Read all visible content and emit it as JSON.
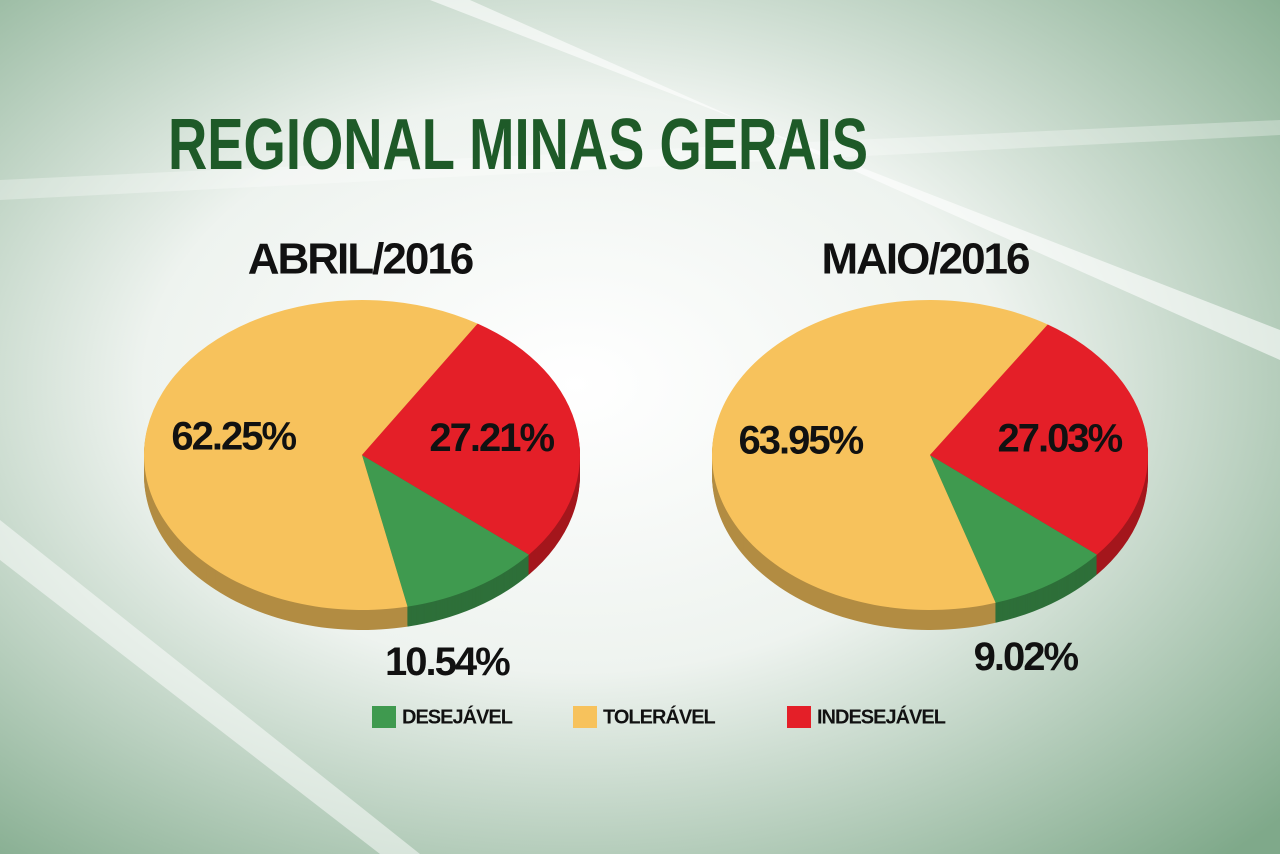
{
  "title": "REGIONAL MINAS GERAIS",
  "chart_data": [
    {
      "type": "pie",
      "title": "ABRIL/2016",
      "categories": [
        "DESEJÁVEL",
        "TOLERÁVEL",
        "INDESEJÁVEL"
      ],
      "values": [
        10.54,
        62.25,
        27.21
      ],
      "value_labels": [
        "10.54%",
        "62.25%",
        "27.21%"
      ],
      "colors": [
        "#3f9a4f",
        "#f7c25c",
        "#e41f28"
      ]
    },
    {
      "type": "pie",
      "title": "MAIO/2016",
      "categories": [
        "DESEJÁVEL",
        "TOLERÁVEL",
        "INDESEJÁVEL"
      ],
      "values": [
        9.02,
        63.95,
        27.03
      ],
      "value_labels": [
        "9.02%",
        "63.95%",
        "27.03%"
      ],
      "colors": [
        "#3f9a4f",
        "#f7c25c",
        "#e41f28"
      ]
    }
  ]
}
